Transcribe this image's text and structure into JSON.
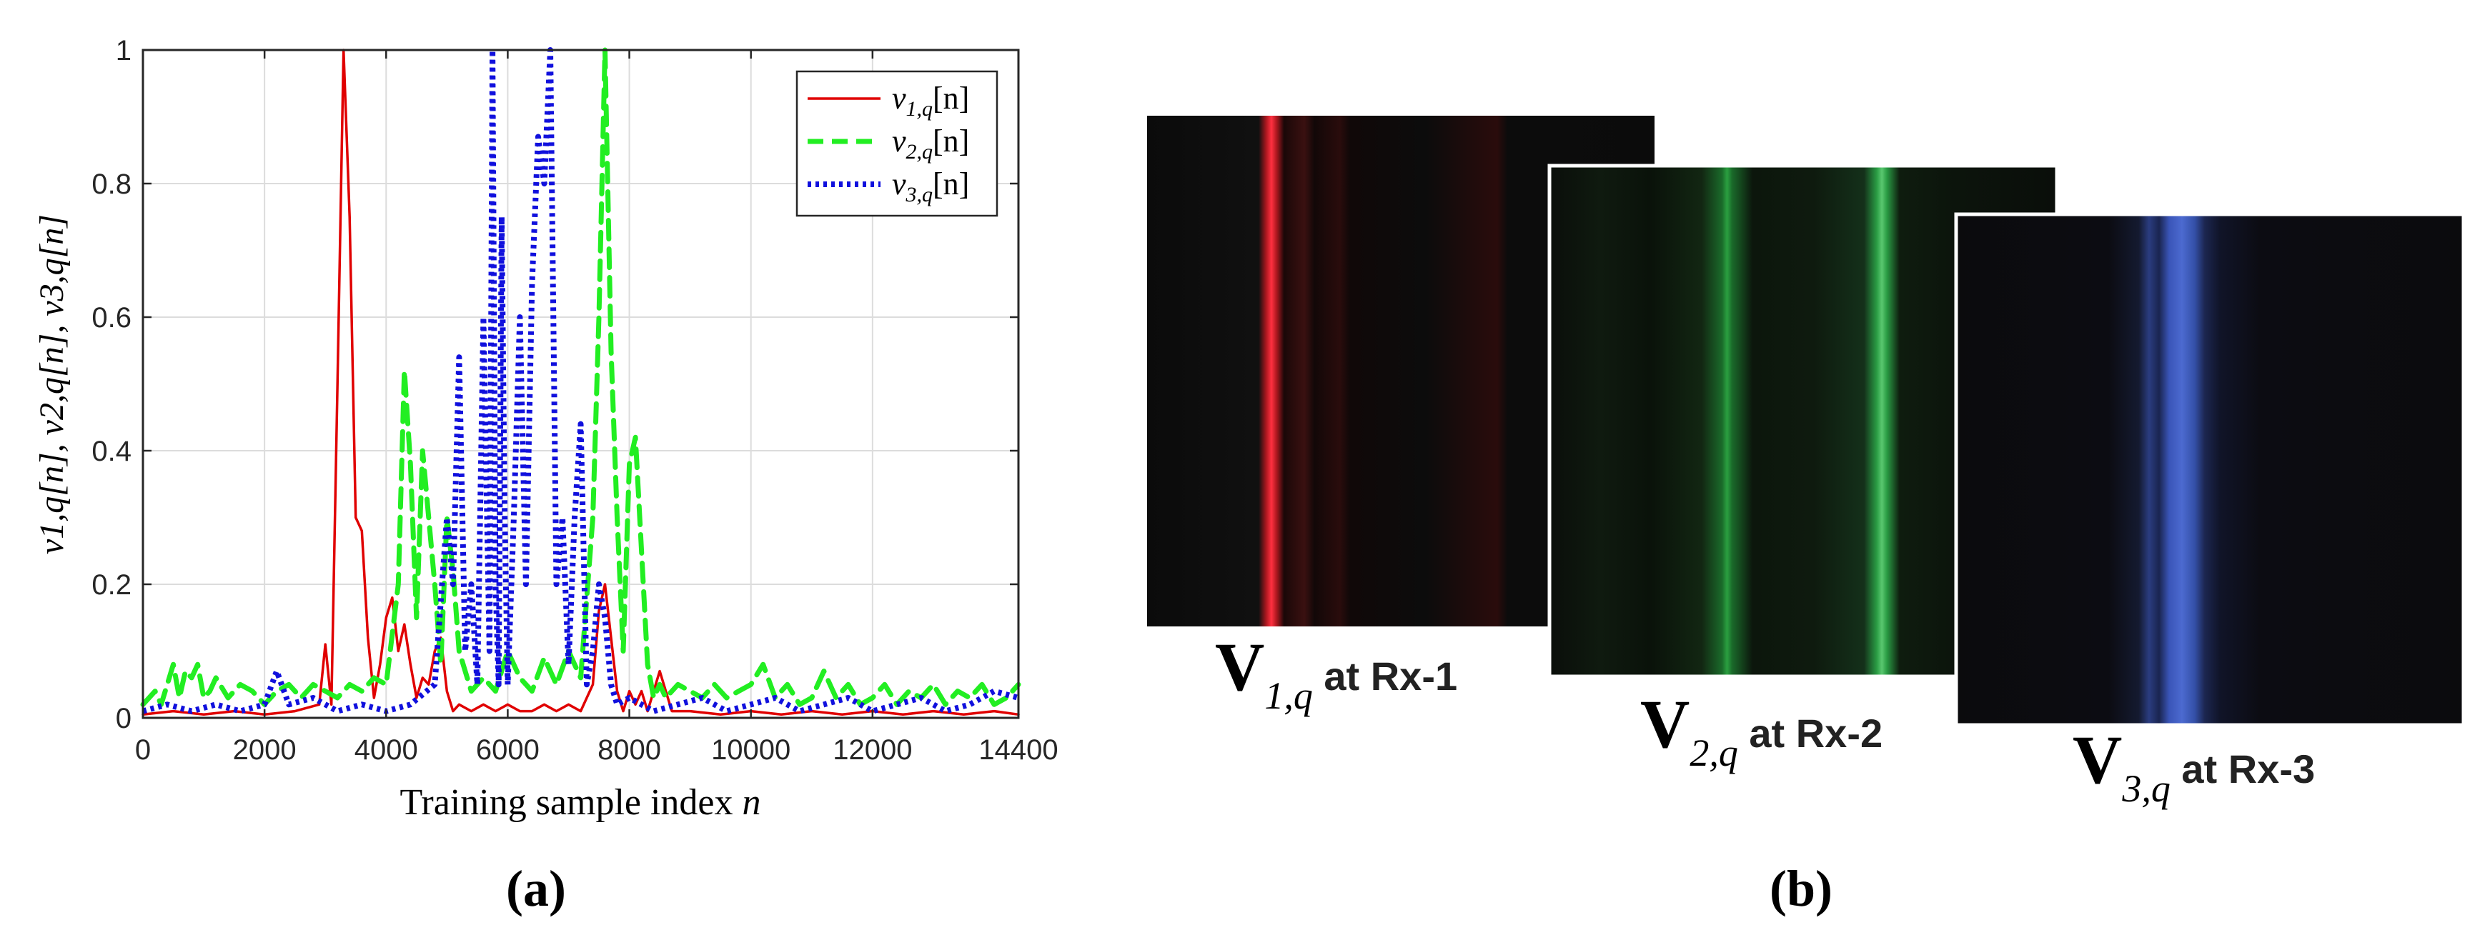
{
  "chart_data": {
    "type": "line",
    "caption": "(a)",
    "xlabel_main": "Training sample index ",
    "xlabel_var": "n",
    "ylabel": "v1,q[n], v2,q[n], v3,q[n]",
    "xlim": [
      0,
      14400
    ],
    "ylim": [
      0,
      1
    ],
    "xticks": [
      "0",
      "2000",
      "4000",
      "6000",
      "8000",
      "10000",
      "12000",
      "14400"
    ],
    "xtick_values": [
      0,
      2000,
      4000,
      6000,
      8000,
      10000,
      12000,
      14400
    ],
    "yticks": [
      "0",
      "0.2",
      "0.4",
      "0.6",
      "0.8",
      "1"
    ],
    "ytick_values": [
      0,
      0.2,
      0.4,
      0.6,
      0.8,
      1
    ],
    "grid": true,
    "legend_position": "top-right",
    "series": [
      {
        "name": "v1,q[n]",
        "legend_main": "v",
        "legend_sub": "1,q",
        "legend_suffix": "[n]",
        "color": "#e00000",
        "style": "solid",
        "x": [
          0,
          500,
          1000,
          1500,
          2000,
          2500,
          2900,
          3000,
          3100,
          3200,
          3300,
          3400,
          3500,
          3600,
          3700,
          3800,
          3900,
          4000,
          4100,
          4200,
          4300,
          4400,
          4500,
          4600,
          4700,
          4800,
          4900,
          5000,
          5100,
          5200,
          5400,
          5600,
          5800,
          6000,
          6200,
          6400,
          6600,
          6800,
          7000,
          7200,
          7400,
          7500,
          7600,
          7700,
          7800,
          7900,
          8000,
          8100,
          8200,
          8300,
          8400,
          8500,
          8600,
          8700,
          8800,
          9000,
          9500,
          10000,
          10500,
          11000,
          11500,
          12000,
          12500,
          13000,
          13500,
          14000,
          14400
        ],
        "y": [
          0.005,
          0.01,
          0.005,
          0.01,
          0.005,
          0.01,
          0.02,
          0.11,
          0.02,
          0.5,
          1.0,
          0.75,
          0.3,
          0.28,
          0.12,
          0.03,
          0.08,
          0.15,
          0.18,
          0.1,
          0.14,
          0.08,
          0.03,
          0.06,
          0.05,
          0.1,
          0.12,
          0.04,
          0.01,
          0.02,
          0.01,
          0.02,
          0.01,
          0.02,
          0.01,
          0.01,
          0.02,
          0.01,
          0.02,
          0.01,
          0.05,
          0.16,
          0.2,
          0.12,
          0.04,
          0.01,
          0.04,
          0.02,
          0.04,
          0.01,
          0.04,
          0.07,
          0.04,
          0.01,
          0.01,
          0.01,
          0.005,
          0.01,
          0.005,
          0.01,
          0.005,
          0.01,
          0.005,
          0.01,
          0.005,
          0.01,
          0.005
        ]
      },
      {
        "name": "v2,q[n]",
        "legend_main": "v",
        "legend_sub": "2,q",
        "legend_suffix": "[n]",
        "color": "#22ee22",
        "style": "dashed",
        "x": [
          0,
          100,
          200,
          300,
          400,
          500,
          600,
          700,
          800,
          900,
          1000,
          1100,
          1200,
          1400,
          1600,
          1800,
          2000,
          2200,
          2400,
          2600,
          2800,
          3000,
          3200,
          3400,
          3600,
          3800,
          4000,
          4200,
          4300,
          4400,
          4500,
          4600,
          4700,
          4800,
          4900,
          5000,
          5100,
          5200,
          5400,
          5600,
          5800,
          6000,
          6200,
          6400,
          6600,
          6800,
          7000,
          7200,
          7400,
          7500,
          7600,
          7700,
          7800,
          7900,
          8000,
          8100,
          8200,
          8300,
          8400,
          8500,
          8600,
          8800,
          9000,
          9200,
          9400,
          9600,
          9800,
          10000,
          10200,
          10400,
          10600,
          10800,
          11000,
          11200,
          11400,
          11600,
          11800,
          12000,
          12200,
          12400,
          12600,
          12800,
          13000,
          13200,
          13400,
          13600,
          13800,
          14000,
          14200,
          14400
        ],
        "y": [
          0.02,
          0.03,
          0.04,
          0.02,
          0.05,
          0.08,
          0.03,
          0.07,
          0.06,
          0.08,
          0.03,
          0.04,
          0.06,
          0.03,
          0.05,
          0.04,
          0.02,
          0.04,
          0.05,
          0.03,
          0.05,
          0.04,
          0.03,
          0.05,
          0.04,
          0.06,
          0.05,
          0.2,
          0.52,
          0.38,
          0.15,
          0.4,
          0.3,
          0.2,
          0.08,
          0.3,
          0.22,
          0.1,
          0.04,
          0.06,
          0.04,
          0.1,
          0.06,
          0.04,
          0.09,
          0.05,
          0.1,
          0.06,
          0.3,
          0.6,
          1.0,
          0.55,
          0.3,
          0.1,
          0.38,
          0.42,
          0.25,
          0.08,
          0.03,
          0.05,
          0.03,
          0.05,
          0.04,
          0.03,
          0.05,
          0.03,
          0.04,
          0.05,
          0.08,
          0.03,
          0.05,
          0.02,
          0.03,
          0.07,
          0.03,
          0.05,
          0.02,
          0.03,
          0.05,
          0.02,
          0.04,
          0.03,
          0.05,
          0.02,
          0.04,
          0.03,
          0.05,
          0.02,
          0.03,
          0.05
        ]
      },
      {
        "name": "v3,q[n]",
        "legend_main": "v",
        "legend_sub": "3,q",
        "legend_suffix": "[n]",
        "color": "#1010dd",
        "style": "dotted",
        "x": [
          0,
          400,
          800,
          1200,
          1600,
          2000,
          2200,
          2400,
          2800,
          3200,
          3600,
          4000,
          4400,
          4800,
          5000,
          5100,
          5200,
          5300,
          5400,
          5500,
          5600,
          5700,
          5750,
          5800,
          5850,
          5900,
          5950,
          6000,
          6100,
          6200,
          6300,
          6400,
          6500,
          6600,
          6700,
          6800,
          6900,
          7000,
          7100,
          7200,
          7300,
          7400,
          7500,
          7600,
          7700,
          7800,
          8000,
          8400,
          8800,
          9200,
          9600,
          10000,
          10400,
          10800,
          11200,
          11600,
          12000,
          12400,
          12800,
          13200,
          13600,
          14000,
          14400
        ],
        "y": [
          0.01,
          0.02,
          0.01,
          0.02,
          0.01,
          0.02,
          0.07,
          0.02,
          0.03,
          0.01,
          0.02,
          0.01,
          0.02,
          0.05,
          0.3,
          0.2,
          0.54,
          0.1,
          0.2,
          0.05,
          0.6,
          0.1,
          1.0,
          0.2,
          0.05,
          0.75,
          0.3,
          0.05,
          0.3,
          0.6,
          0.2,
          0.65,
          0.87,
          0.8,
          1.0,
          0.2,
          0.3,
          0.08,
          0.3,
          0.44,
          0.05,
          0.1,
          0.2,
          0.15,
          0.05,
          0.02,
          0.03,
          0.01,
          0.02,
          0.03,
          0.01,
          0.02,
          0.03,
          0.01,
          0.02,
          0.03,
          0.01,
          0.02,
          0.03,
          0.01,
          0.02,
          0.04,
          0.03
        ]
      }
    ]
  },
  "panel_b": {
    "caption": "(b)",
    "images": [
      {
        "name": "V",
        "sub": "1,q",
        "suffix": " at Rx-1",
        "color": "#e01020"
      },
      {
        "name": "V",
        "sub": "2,q",
        "suffix": " at Rx-2",
        "color": "#1a8a3a"
      },
      {
        "name": "V",
        "sub": "3,q",
        "suffix": " at Rx-3",
        "color": "#2a4fa0"
      }
    ]
  }
}
